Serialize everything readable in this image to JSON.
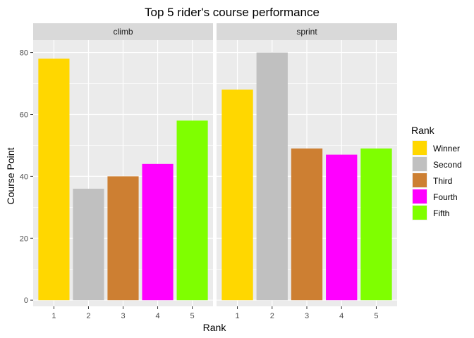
{
  "chart_data": {
    "type": "bar",
    "title": "Top 5 rider's course performance",
    "xlabel": "Rank",
    "ylabel": "Course Point",
    "ylim": [
      -2,
      84
    ],
    "yticks": [
      0,
      20,
      40,
      60,
      80
    ],
    "categories": [
      "1",
      "2",
      "3",
      "4",
      "5"
    ],
    "facets": [
      {
        "label": "climb",
        "values": [
          78,
          36,
          40,
          44,
          58
        ]
      },
      {
        "label": "sprint",
        "values": [
          68,
          80,
          49,
          47,
          49
        ]
      }
    ],
    "legend": {
      "title": "Rank",
      "placement": "right",
      "entries": [
        {
          "label": "Winner",
          "color": "#FFD700"
        },
        {
          "label": "Second",
          "color": "#C0C0C0"
        },
        {
          "label": "Third",
          "color": "#CD7F32"
        },
        {
          "label": "Fourth",
          "color": "#FF00FF"
        },
        {
          "label": "Fifth",
          "color": "#7FFF00"
        }
      ]
    },
    "grid": true,
    "panel_background": "#EBEBEB",
    "strip_background": "#D9D9D9"
  }
}
